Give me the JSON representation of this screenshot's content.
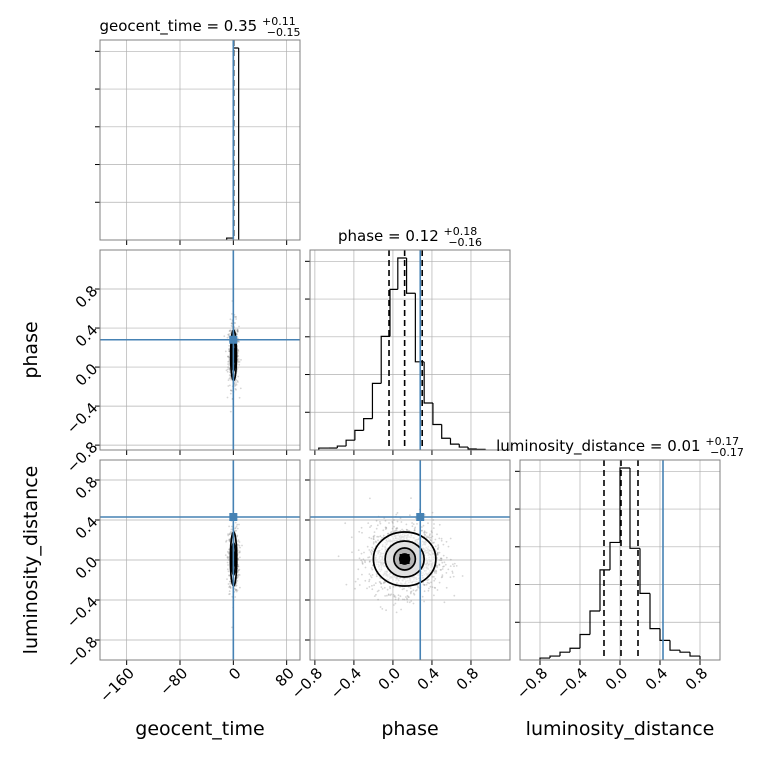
{
  "chart_data": {
    "type": "corner",
    "parameters": [
      "geocent_time",
      "phase",
      "luminosity_distance"
    ],
    "diag_titles": [
      {
        "param": "geocent_time",
        "median": "0.35",
        "plus": "+0.11",
        "minus": "−0.15"
      },
      {
        "param": "phase",
        "median": "0.12",
        "plus": "+0.18",
        "minus": "−0.16"
      },
      {
        "param": "luminosity_distance",
        "median": "0.01",
        "plus": "+0.17",
        "minus": "−0.17"
      }
    ],
    "axis_labels": [
      "geocent_time",
      "phase",
      "luminosity_distance"
    ],
    "ranges": {
      "geocent_time": [
        -200,
        100
      ],
      "phase": [
        -0.85,
        1.2
      ],
      "luminosity_distance": [
        -1.0,
        1.0
      ]
    },
    "ticks": {
      "geocent_time": [
        -160,
        -80,
        0,
        80
      ],
      "phase": [
        -0.8,
        -0.4,
        0.0,
        0.4,
        0.8
      ],
      "luminosity_distance": [
        -0.8,
        -0.4,
        0.0,
        0.4,
        0.8
      ]
    },
    "tick_labels": {
      "geocent_time": [
        "−160",
        "−80",
        "0",
        "80"
      ],
      "phase": [
        "−0.8",
        "−0.4",
        "0.0",
        "0.4",
        "0.8"
      ],
      "luminosity_distance": [
        "−0.8",
        "−0.4",
        "0.0",
        "0.4",
        "0.8"
      ]
    },
    "truths": {
      "geocent_time": 0.0,
      "phase": 0.28,
      "luminosity_distance": 0.43
    },
    "quantiles": {
      "geocent_time": [
        0.2,
        0.35,
        0.46
      ],
      "phase": [
        -0.04,
        0.12,
        0.3
      ],
      "luminosity_distance": [
        -0.16,
        0.01,
        0.18
      ]
    },
    "histograms": {
      "geocent_time": {
        "edges": [
          -10,
          0,
          8
        ],
        "counts": [
          0.01,
          1.0
        ]
      },
      "phase": {
        "edges": [
          -0.76,
          -0.66,
          -0.57,
          -0.48,
          -0.39,
          -0.3,
          -0.21,
          -0.12,
          -0.03,
          0.05,
          0.14,
          0.23,
          0.32,
          0.41,
          0.5,
          0.59,
          0.68,
          0.77,
          0.86,
          0.95
        ],
        "counts": [
          0.01,
          0.01,
          0.02,
          0.05,
          0.1,
          0.16,
          0.34,
          0.58,
          0.82,
          0.98,
          0.8,
          0.45,
          0.24,
          0.13,
          0.06,
          0.03,
          0.015,
          0.005,
          0.003
        ]
      },
      "luminosity_distance": {
        "edges": [
          -0.8,
          -0.7,
          -0.6,
          -0.5,
          -0.4,
          -0.3,
          -0.2,
          -0.1,
          0.0,
          0.1,
          0.2,
          0.3,
          0.4,
          0.5,
          0.6,
          0.7,
          0.8
        ],
        "counts": [
          0.01,
          0.02,
          0.04,
          0.06,
          0.13,
          0.25,
          0.46,
          0.6,
          0.98,
          0.57,
          0.34,
          0.16,
          0.1,
          0.05,
          0.04,
          0.02
        ]
      }
    },
    "joint_2d": [
      {
        "x": "geocent_time",
        "y": "phase",
        "center": [
          0.35,
          0.12
        ],
        "sigma": [
          4,
          0.17
        ],
        "contours": [
          [
            1.2,
            0.07
          ],
          [
            2.6,
            0.16
          ],
          [
            4.4,
            0.26
          ]
        ]
      },
      {
        "x": "geocent_time",
        "y": "luminosity_distance",
        "center": [
          0.35,
          0.01
        ],
        "sigma": [
          4,
          0.17
        ],
        "contours": [
          [
            1.2,
            0.07
          ],
          [
            2.8,
            0.16
          ],
          [
            4.8,
            0.27
          ]
        ]
      },
      {
        "x": "phase",
        "y": "luminosity_distance",
        "center": [
          0.12,
          0.01
        ],
        "sigma": [
          0.18,
          0.17
        ],
        "contours": [
          [
            0.05,
            0.05
          ],
          [
            0.11,
            0.11
          ],
          [
            0.2,
            0.18
          ],
          [
            0.32,
            0.27
          ]
        ]
      }
    ],
    "colors": {
      "truth": "#4682b4",
      "hist": "#000000",
      "grid": "#b0b0b0",
      "points": "#8a8a8a",
      "contour": "#000000"
    },
    "grid": true
  }
}
